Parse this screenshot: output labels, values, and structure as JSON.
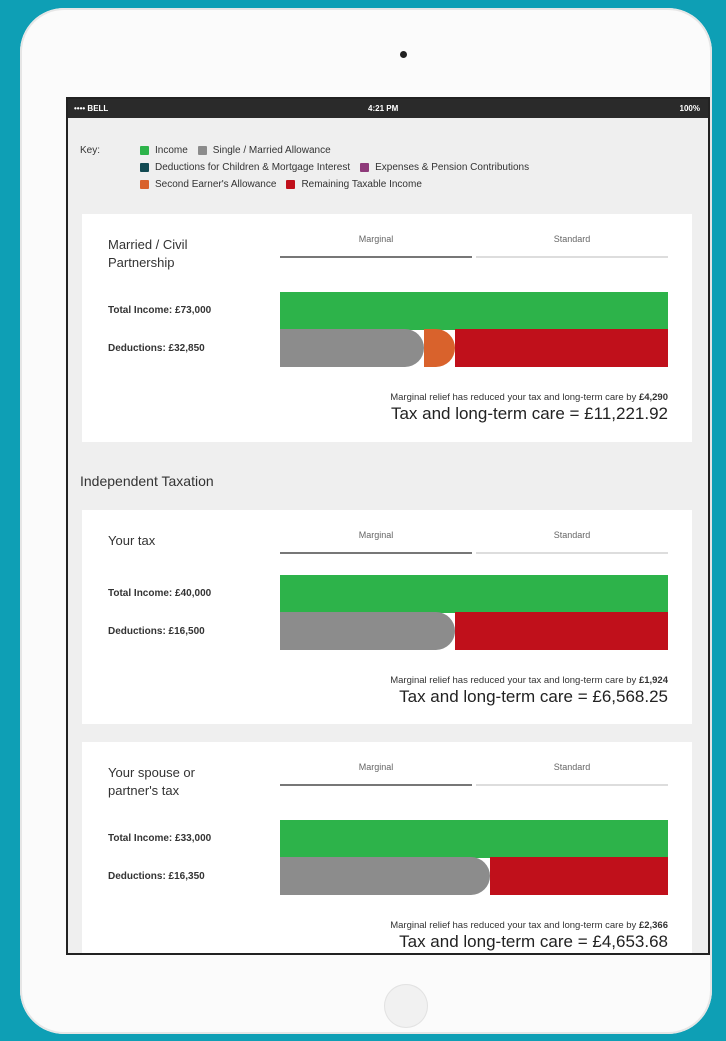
{
  "status_bar": {
    "carrier": "•••• BELL",
    "time": "4:21 PM",
    "battery": "100%"
  },
  "key": {
    "label": "Key:",
    "items": [
      {
        "text": "Income",
        "color": "#2db34a"
      },
      {
        "text": "Single / Married Allowance",
        "color": "#8c8c8c"
      },
      {
        "text": "Deductions for Children & Mortgage Interest",
        "color": "#124a52"
      },
      {
        "text": "Expenses & Pension Contributions",
        "color": "#8e3a7a"
      },
      {
        "text": "Second Earner's Allowance",
        "color": "#d9622c"
      },
      {
        "text": "Remaining Taxable Income",
        "color": "#c0101b"
      }
    ]
  },
  "section_heading": "Independent Taxation",
  "cards": [
    {
      "title": "Married / Civil Partnership",
      "tabs": [
        "Marginal",
        "Standard"
      ],
      "total_income": "Total Income: £73,000",
      "deductions": "Deductions: £32,850",
      "relief_text": "Marginal relief has reduced your tax and long-term care by",
      "relief_amount": "£4,290",
      "total": "Tax and long-term care = £11,221.92"
    },
    {
      "title": "Your tax",
      "tabs": [
        "Marginal",
        "Standard"
      ],
      "total_income": "Total Income: £40,000",
      "deductions": "Deductions: £16,500",
      "relief_text": "Marginal relief has reduced your tax and long-term care by",
      "relief_amount": "£1,924",
      "total": "Tax and long-term care = £6,568.25"
    },
    {
      "title": "Your spouse or partner's tax",
      "tabs": [
        "Marginal",
        "Standard"
      ],
      "total_income": "Total Income: £33,000",
      "deductions": "Deductions: £16,350",
      "relief_text": "Marginal relief has reduced your tax and long-term care by",
      "relief_amount": "£2,366",
      "total": "Tax and long-term care = £4,653.68"
    }
  ]
}
